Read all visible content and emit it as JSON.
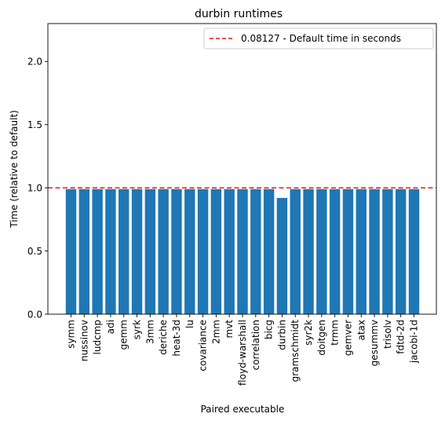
{
  "chart_data": {
    "type": "bar",
    "title": "durbin runtimes",
    "xlabel": "Paired executable",
    "ylabel": "Time (relative to default)",
    "ylim": [
      0,
      2.3
    ],
    "yticks": [
      "0.0",
      "0.5",
      "1.0",
      "1.5",
      "2.0"
    ],
    "ytick_values": [
      0,
      0.5,
      1.0,
      1.5,
      2.0
    ],
    "categories": [
      "symm",
      "nussinov",
      "ludcmp",
      "adi",
      "gemm",
      "syrk",
      "3mm",
      "deriche",
      "heat-3d",
      "lu",
      "covariance",
      "2mm",
      "mvt",
      "floyd-warshall",
      "correlation",
      "bicg",
      "durbin",
      "gramschmidt",
      "syr2k",
      "doitgen",
      "trmm",
      "gemver",
      "atax",
      "gesummv",
      "trisolv",
      "fdtd-2d",
      "jacobi-1d"
    ],
    "values": [
      0.99,
      0.99,
      0.99,
      0.99,
      0.99,
      0.99,
      0.99,
      0.99,
      0.99,
      0.99,
      0.99,
      0.99,
      0.99,
      0.99,
      0.99,
      0.99,
      0.92,
      0.99,
      0.99,
      0.99,
      0.99,
      0.99,
      0.99,
      0.99,
      0.99,
      0.99,
      0.99
    ],
    "bar_color": "#1f77b4",
    "reference_line": {
      "value": 1.0,
      "color": "#e31a1c",
      "style": "dashed"
    },
    "legend": {
      "position": "top-right",
      "entries": [
        "0.08127 - Default time in seconds"
      ]
    },
    "grid": false
  }
}
